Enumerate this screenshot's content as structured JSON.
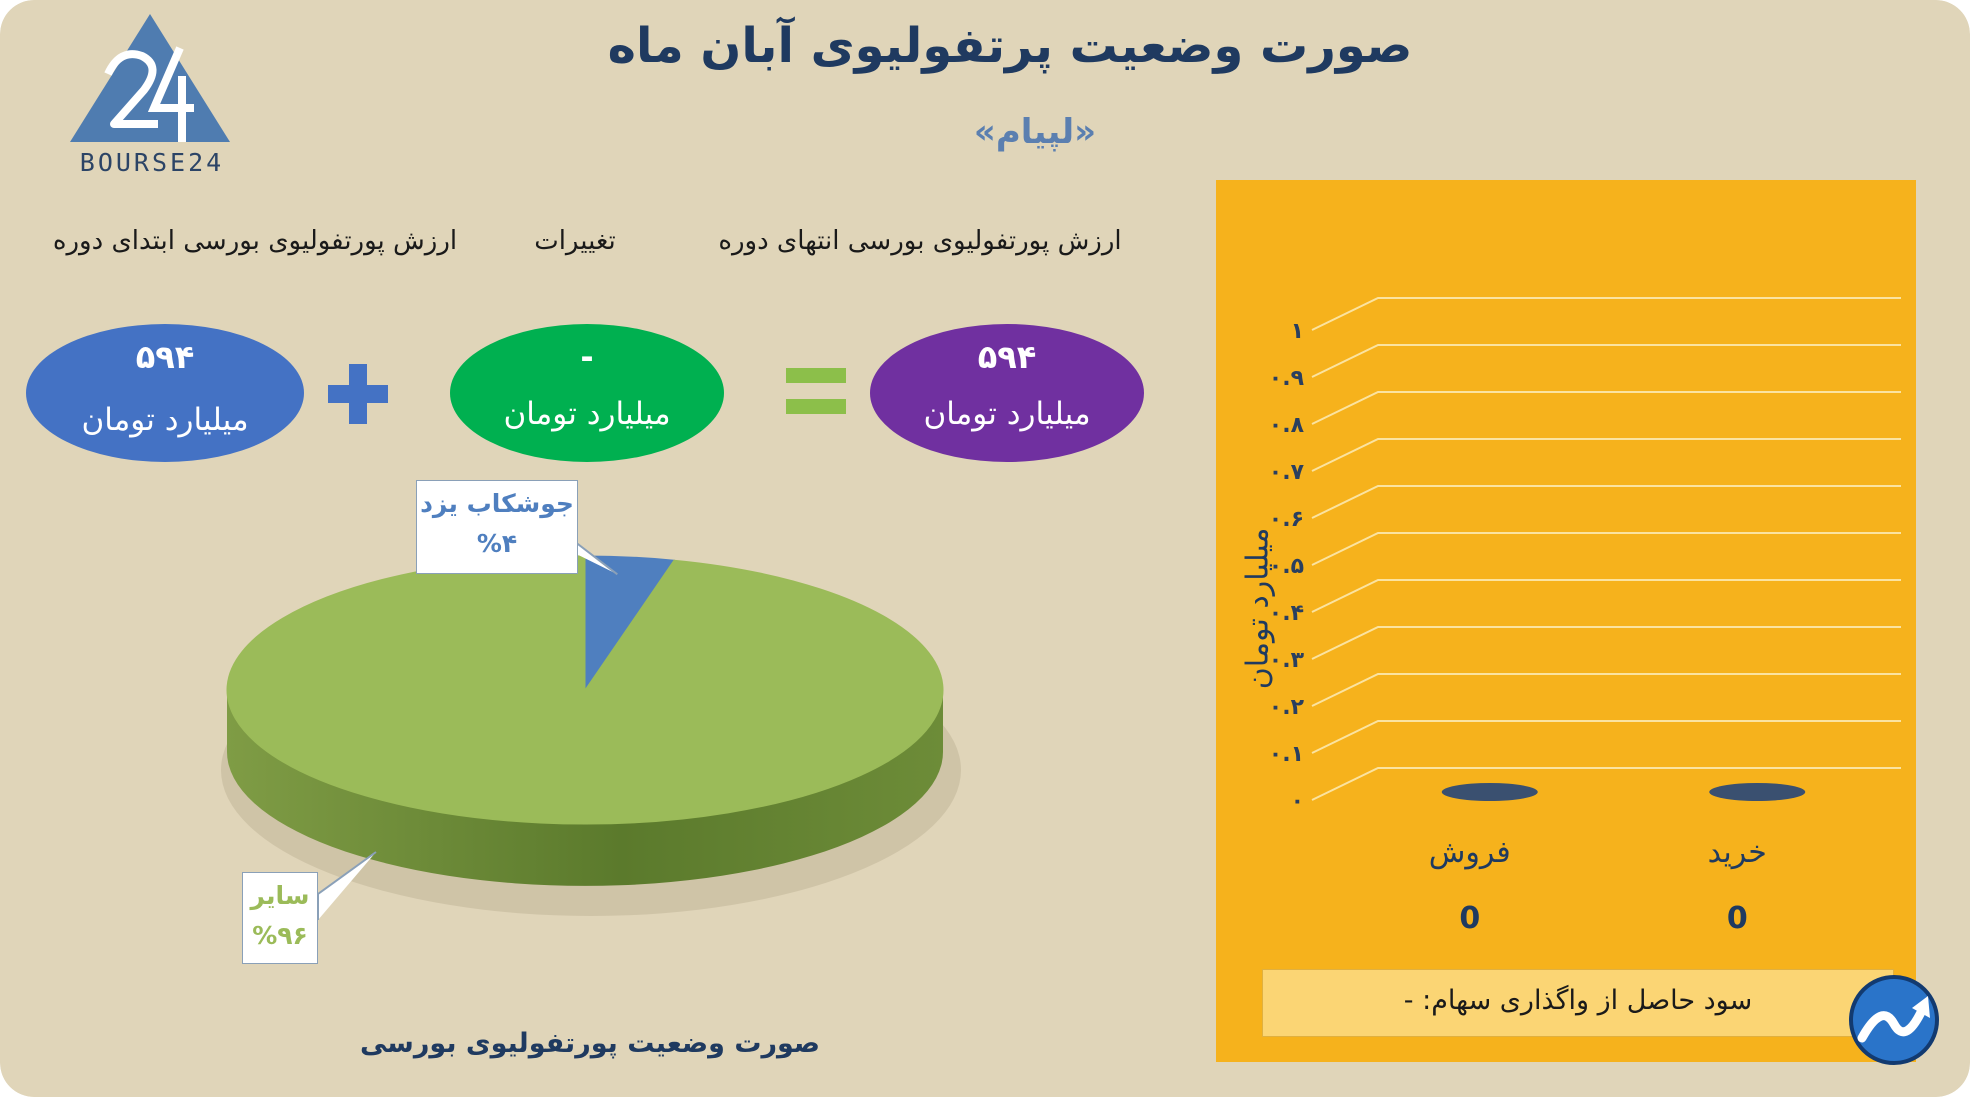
{
  "header": {
    "title": "صورت وضعیت پرتفولیوی آبان ماه",
    "subtitle": "«لپیام»"
  },
  "logo": {
    "text": "BOURSE24",
    "icon": "bourse24-logo-icon"
  },
  "equation": {
    "start_label": "ارزش پورتفولیوی بورسی ابتدای دوره",
    "change_label": "تغییرات",
    "end_label": "ارزش پورتفولیوی بورسی انتهای دوره",
    "start_value": "۵۹۴",
    "change_value": "-",
    "end_value": "۵۹۴",
    "unit": "میلیارد تومان",
    "plus_icon": "plus-icon",
    "equals_icon": "equals-icon",
    "colors": {
      "start": "#4472c4",
      "change": "#00b050",
      "end": "#7030a0",
      "plus": "#4472c4",
      "equals": "#8cbf4a"
    }
  },
  "chart_data": [
    {
      "type": "pie",
      "title": "صورت وضعیت پورتفولیوی بورسی",
      "slices": [
        {
          "label": "جوشکاب یزد",
          "value": 4,
          "value_label": "%۴",
          "color": "#4f7fbf"
        },
        {
          "label": "سایر",
          "value": 96,
          "value_label": "%۹۶",
          "color": "#9bbb59"
        }
      ]
    },
    {
      "type": "bar",
      "categories": [
        "خرید",
        "فروش"
      ],
      "values": [
        0,
        0
      ],
      "value_labels": [
        "0",
        "0"
      ],
      "ylabel": "میلیارد تومان",
      "ylim": [
        0,
        1
      ],
      "yticks": [
        "۰",
        "۰.۱",
        "۰.۲",
        "۰.۳",
        "۰.۴",
        "۰.۵",
        "۰.۶",
        "۰.۷",
        "۰.۸",
        "۰.۹",
        "۱"
      ],
      "grid": true,
      "bar_color": "#3a5070"
    }
  ],
  "profit": {
    "label": "سود حاصل از واگذاری سهام: -"
  },
  "colors": {
    "background": "#e0d5b9",
    "panel": "#f6b21c",
    "title": "#1f3a60"
  },
  "corner_icon": "trend-arrow-icon"
}
